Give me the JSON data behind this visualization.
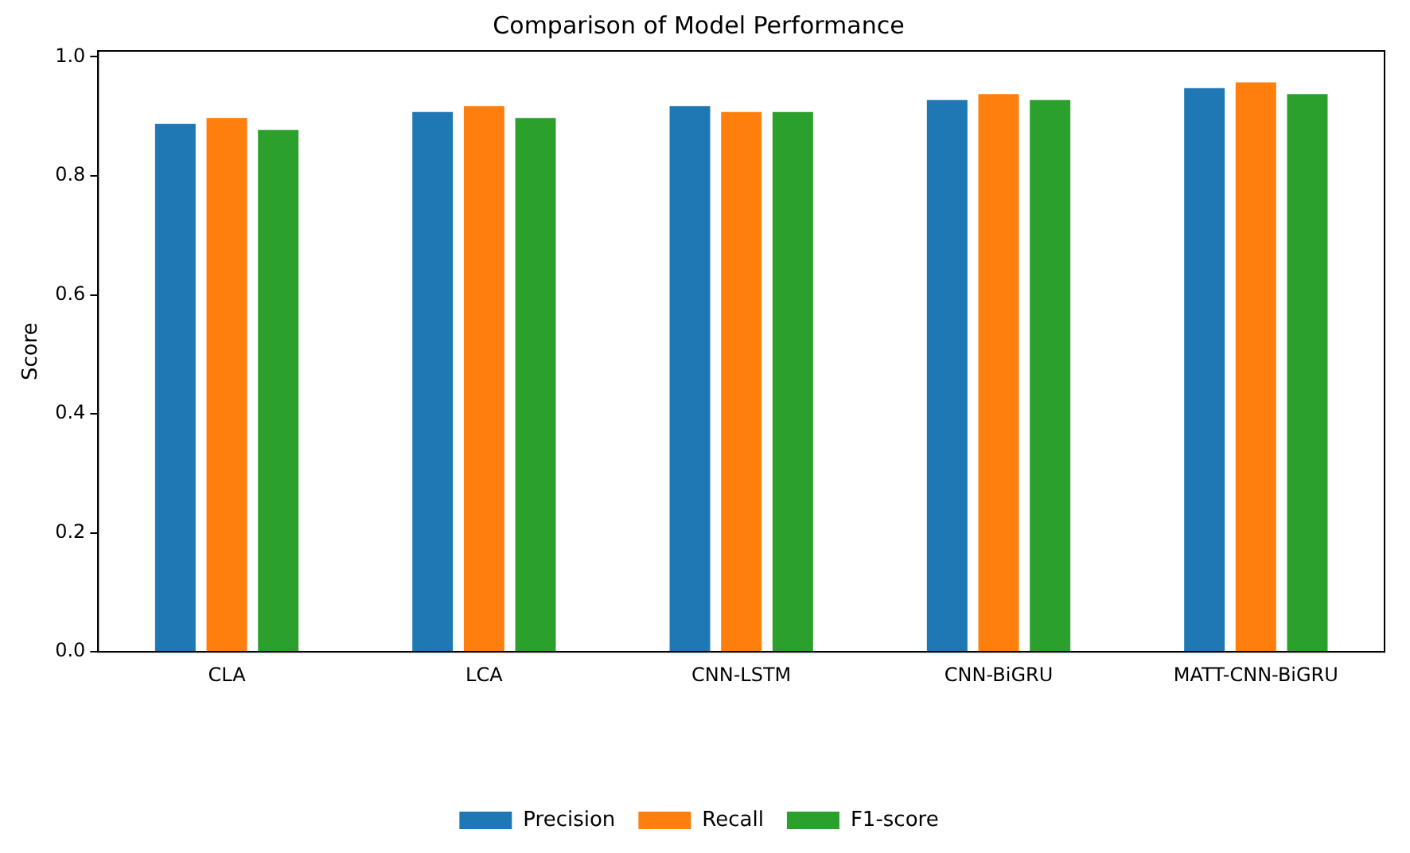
{
  "chart_data": {
    "type": "bar",
    "title": "Comparison of Model Performance",
    "ylabel": "Score",
    "categories": [
      "CLA",
      "LCA",
      "CNN-LSTM",
      "CNN-BiGRU",
      "MATT-CNN-BiGRU"
    ],
    "series": [
      {
        "name": "Precision",
        "color": "#1f77b4",
        "values": [
          0.89,
          0.91,
          0.92,
          0.93,
          0.95
        ]
      },
      {
        "name": "Recall",
        "color": "#ff7f0e",
        "values": [
          0.9,
          0.92,
          0.91,
          0.94,
          0.96
        ]
      },
      {
        "name": "F1-score",
        "color": "#2ca02c",
        "values": [
          0.88,
          0.9,
          0.91,
          0.93,
          0.94
        ]
      }
    ],
    "ylim": [
      0,
      1.01
    ],
    "yticks": [
      {
        "value": 0,
        "label": "0.0"
      },
      {
        "value": 0.2,
        "label": "0.2"
      },
      {
        "value": 0.4,
        "label": "0.4"
      },
      {
        "value": 0.6,
        "label": "0.6"
      },
      {
        "value": 0.8,
        "label": "0.8"
      },
      {
        "value": 1.0,
        "label": "1.0"
      }
    ],
    "grid": false,
    "legend": "bottom"
  }
}
